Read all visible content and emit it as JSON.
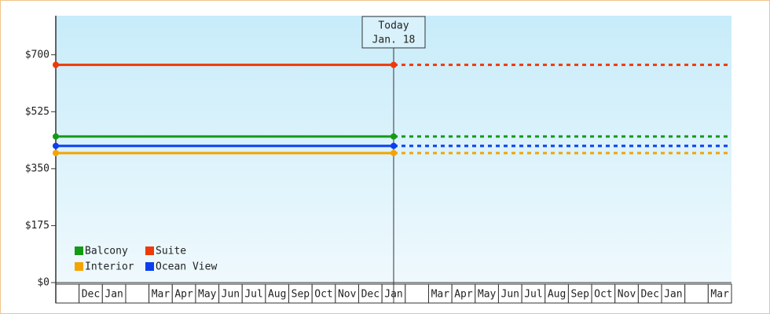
{
  "chart_data": {
    "type": "line",
    "categories": [
      null,
      "Dec",
      "Jan",
      null,
      "Mar",
      "Apr",
      "May",
      "Jun",
      "Jul",
      "Aug",
      "Sep",
      "Oct",
      "Nov",
      "Dec",
      "Jan",
      null,
      "Mar",
      "Apr",
      "May",
      "Jun",
      "Jul",
      "Aug",
      "Sep",
      "Oct",
      "Nov",
      "Dec",
      "Jan",
      null,
      "Mar"
    ],
    "series": [
      {
        "name": "Balcony",
        "color": "#159a15",
        "value": 449
      },
      {
        "name": "Interior",
        "color": "#f5a300",
        "value": 398
      },
      {
        "name": "Suite",
        "color": "#ee3a0a",
        "value": 669
      },
      {
        "name": "Ocean View",
        "color": "#0a3ff0",
        "value": 420
      }
    ],
    "annotation": {
      "title": "Today",
      "label": "Jan. 18",
      "category": 14
    },
    "ylim": [
      0,
      820
    ],
    "yticks": [
      {
        "value": 0,
        "label": "$0"
      },
      {
        "value": 175,
        "label": "$175"
      },
      {
        "value": 350,
        "label": "$350"
      },
      {
        "value": 525,
        "label": "$525"
      },
      {
        "value": 700,
        "label": "$700"
      }
    ],
    "legend": "lower left"
  }
}
